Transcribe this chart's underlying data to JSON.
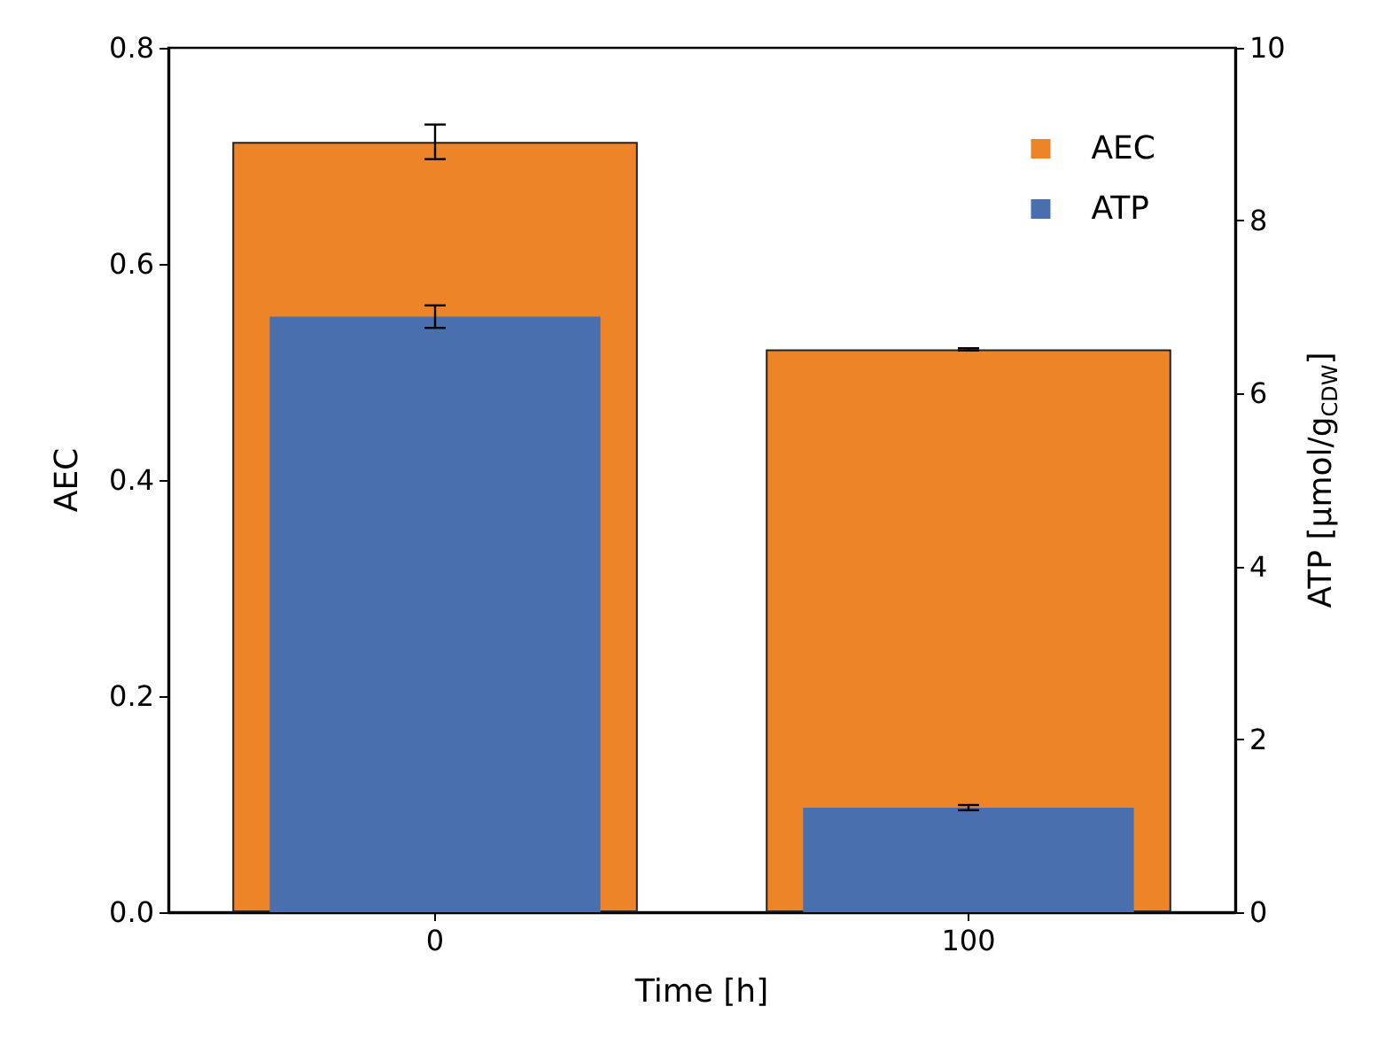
{
  "chart_data": {
    "type": "bar",
    "xlabel": "Time [h]",
    "ylabel": "AEC",
    "y2label": "ATP [µmol/g$_{CDW}$]",
    "categories": [
      "0",
      "100"
    ],
    "series": [
      {
        "name": "AEC",
        "color": "#ee8428",
        "values": [
          0.713,
          0.521
        ],
        "errors": [
          0.016,
          0.001
        ]
      },
      {
        "name": "ATP",
        "color": "#4a6fae",
        "values": [
          6.89,
          1.21
        ],
        "errors": [
          0.13,
          0.03
        ],
        "axis": "y2"
      }
    ],
    "ylim": [
      0,
      0.8
    ],
    "yticks": [
      {
        "value": 0,
        "label": "0.0"
      },
      0.2,
      0.4,
      0.6,
      0.8
    ],
    "y2lim": [
      0,
      10
    ],
    "y2ticks": [
      0,
      2,
      4,
      6,
      8,
      10
    ],
    "grid": false,
    "legend": "top right"
  }
}
